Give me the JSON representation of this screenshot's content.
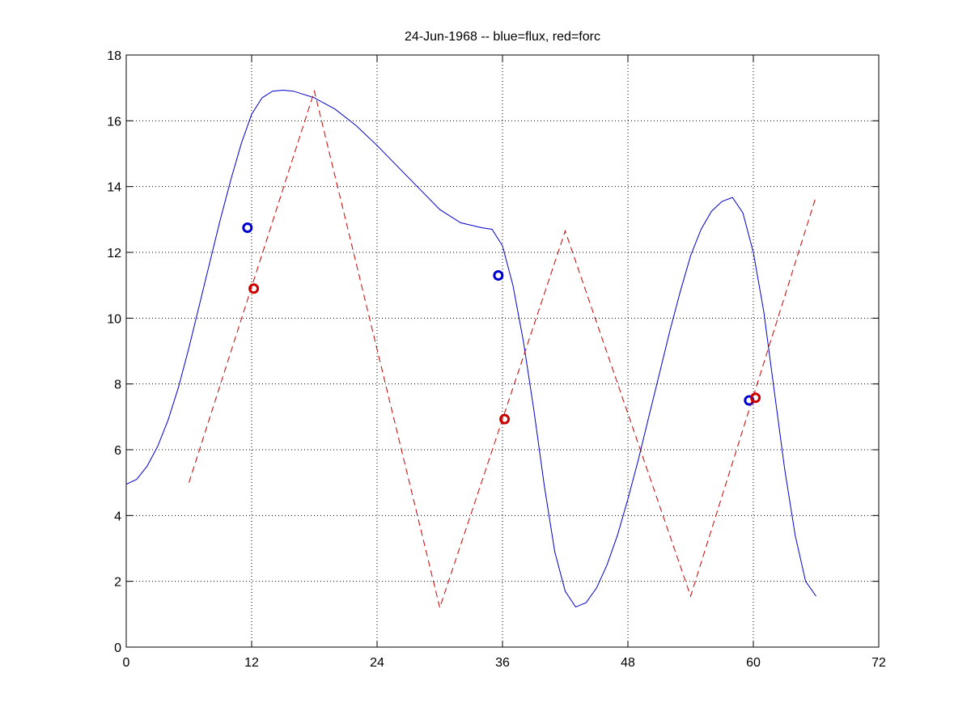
{
  "chart_data": {
    "type": "line",
    "title": "24-Jun-1968 -- blue=flux, red=forc",
    "xlabel": "",
    "ylabel": "",
    "xlim": [
      0,
      72
    ],
    "ylim": [
      0,
      18
    ],
    "xticks": [
      0,
      12,
      24,
      36,
      48,
      60,
      72
    ],
    "yticks": [
      0,
      2,
      4,
      6,
      8,
      10,
      12,
      14,
      16,
      18
    ],
    "grid": true,
    "series": [
      {
        "color": "#0000cc",
        "style": "solid",
        "points": [
          [
            0,
            4.95
          ],
          [
            1,
            5.1
          ],
          [
            2,
            5.5
          ],
          [
            3,
            6.1
          ],
          [
            4,
            6.9
          ],
          [
            5,
            7.9
          ],
          [
            6,
            9.1
          ],
          [
            7,
            10.4
          ],
          [
            8,
            11.7
          ],
          [
            9,
            13.0
          ],
          [
            10,
            14.2
          ],
          [
            11,
            15.3
          ],
          [
            12,
            16.2
          ],
          [
            13,
            16.7
          ],
          [
            14,
            16.9
          ],
          [
            15,
            16.93
          ],
          [
            16,
            16.9
          ],
          [
            17,
            16.8
          ],
          [
            18,
            16.7
          ],
          [
            20,
            16.35
          ],
          [
            22,
            15.85
          ],
          [
            24,
            15.25
          ],
          [
            26,
            14.6
          ],
          [
            28,
            13.95
          ],
          [
            30,
            13.3
          ],
          [
            32,
            12.9
          ],
          [
            34,
            12.75
          ],
          [
            35,
            12.7
          ],
          [
            36,
            12.2
          ],
          [
            37,
            11.0
          ],
          [
            38,
            9.3
          ],
          [
            39,
            7.2
          ],
          [
            40,
            4.9
          ],
          [
            41,
            2.9
          ],
          [
            42,
            1.7
          ],
          [
            43,
            1.22
          ],
          [
            44,
            1.35
          ],
          [
            45,
            1.8
          ],
          [
            46,
            2.5
          ],
          [
            47,
            3.4
          ],
          [
            48,
            4.5
          ],
          [
            49,
            5.7
          ],
          [
            50,
            7.0
          ],
          [
            51,
            8.3
          ],
          [
            52,
            9.6
          ],
          [
            53,
            10.8
          ],
          [
            54,
            11.9
          ],
          [
            55,
            12.7
          ],
          [
            56,
            13.25
          ],
          [
            57,
            13.55
          ],
          [
            58,
            13.67
          ],
          [
            59,
            13.2
          ],
          [
            60,
            12.0
          ],
          [
            61,
            10.2
          ],
          [
            62,
            7.8
          ],
          [
            63,
            5.4
          ],
          [
            64,
            3.4
          ],
          [
            65,
            2.0
          ],
          [
            66,
            1.55
          ]
        ],
        "markers": [
          [
            11.6,
            12.75
          ],
          [
            35.6,
            11.3
          ],
          [
            59.6,
            7.5
          ]
        ]
      },
      {
        "color": "#cc0000",
        "style": "dashed",
        "points": [
          [
            6,
            5.0
          ],
          [
            18,
            16.9
          ],
          [
            30,
            1.2
          ],
          [
            42,
            12.65
          ],
          [
            54,
            1.55
          ],
          [
            66,
            13.7
          ]
        ],
        "markers": [
          [
            12.2,
            10.9
          ],
          [
            36.2,
            6.93
          ],
          [
            60.2,
            7.58
          ]
        ]
      }
    ]
  }
}
